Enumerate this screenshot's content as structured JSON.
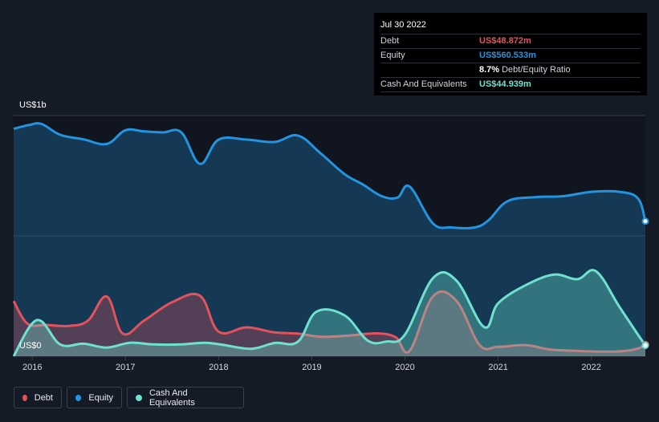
{
  "tooltip": {
    "date": "Jul 30 2022",
    "debt_label": "Debt",
    "debt_value": "US$48.872m",
    "equity_label": "Equity",
    "equity_value": "US$560.533m",
    "ratio_value": "8.7%",
    "ratio_label": "Debt/Equity Ratio",
    "cash_label": "Cash And Equivalents",
    "cash_value": "US$44.939m"
  },
  "legend": [
    {
      "label": "Debt",
      "color": "#e4525e"
    },
    {
      "label": "Equity",
      "color": "#2394df"
    },
    {
      "label": "Cash And Equivalents",
      "color": "#6ee2cf"
    }
  ],
  "chart_data": {
    "type": "area",
    "y_axis_top_label": "US$1b",
    "y_axis_bottom_label": "US$0",
    "ylim": [
      0,
      1000
    ],
    "xlim": [
      2015.8,
      2022.58
    ],
    "x_ticks": [
      "2016",
      "2017",
      "2018",
      "2019",
      "2020",
      "2021",
      "2022"
    ],
    "series": [
      {
        "name": "Equity",
        "color": "#2394df",
        "x": [
          2015.8,
          2015.97,
          2016.1,
          2016.3,
          2016.55,
          2016.8,
          2017.0,
          2017.2,
          2017.4,
          2017.6,
          2017.8,
          2018.0,
          2018.3,
          2018.6,
          2018.85,
          2019.1,
          2019.35,
          2019.55,
          2019.75,
          2019.92,
          2020.05,
          2020.3,
          2020.5,
          2020.75,
          2020.9,
          2021.1,
          2021.4,
          2021.7,
          2022.0,
          2022.3,
          2022.5,
          2022.58
        ],
        "values": [
          945,
          961,
          965,
          920,
          901,
          882,
          939,
          934,
          930,
          930,
          799,
          900,
          900,
          890,
          917,
          841,
          757,
          713,
          665,
          659,
          705,
          552,
          535,
          535,
          566,
          644,
          661,
          665,
          683,
          683,
          656,
          561
        ]
      },
      {
        "name": "Debt",
        "color": "#e4525e",
        "x": [
          2015.8,
          2015.95,
          2016.15,
          2016.4,
          2016.6,
          2016.8,
          2016.97,
          2017.2,
          2017.5,
          2017.8,
          2018.0,
          2018.3,
          2018.6,
          2018.85,
          2019.1,
          2019.4,
          2019.7,
          2019.9,
          2020.05,
          2020.3,
          2020.55,
          2020.8,
          2021.0,
          2021.3,
          2021.55,
          2021.8,
          2022.0,
          2022.3,
          2022.5,
          2022.58
        ],
        "values": [
          229,
          135,
          130,
          126,
          149,
          248,
          94,
          148,
          224,
          251,
          102,
          120,
          99,
          94,
          81,
          86,
          95,
          79,
          22,
          248,
          231,
          47,
          39,
          46,
          28,
          23,
          20,
          20,
          32,
          49
        ]
      },
      {
        "name": "Cash And Equivalents",
        "color": "#6ee2cf",
        "x": [
          2015.8,
          2016.05,
          2016.3,
          2016.55,
          2016.8,
          2017.05,
          2017.3,
          2017.6,
          2017.85,
          2018.05,
          2018.35,
          2018.6,
          2018.85,
          2019.05,
          2019.35,
          2019.6,
          2019.8,
          2020.0,
          2020.3,
          2020.55,
          2020.85,
          2021.0,
          2021.3,
          2021.6,
          2021.85,
          2022.05,
          2022.3,
          2022.5,
          2022.58
        ],
        "values": [
          0,
          150,
          49,
          52,
          36,
          56,
          49,
          49,
          56,
          47,
          31,
          55,
          60,
          185,
          170,
          65,
          61,
          90,
          324,
          315,
          121,
          220,
          296,
          339,
          320,
          353,
          206,
          90,
          45
        ]
      }
    ]
  }
}
